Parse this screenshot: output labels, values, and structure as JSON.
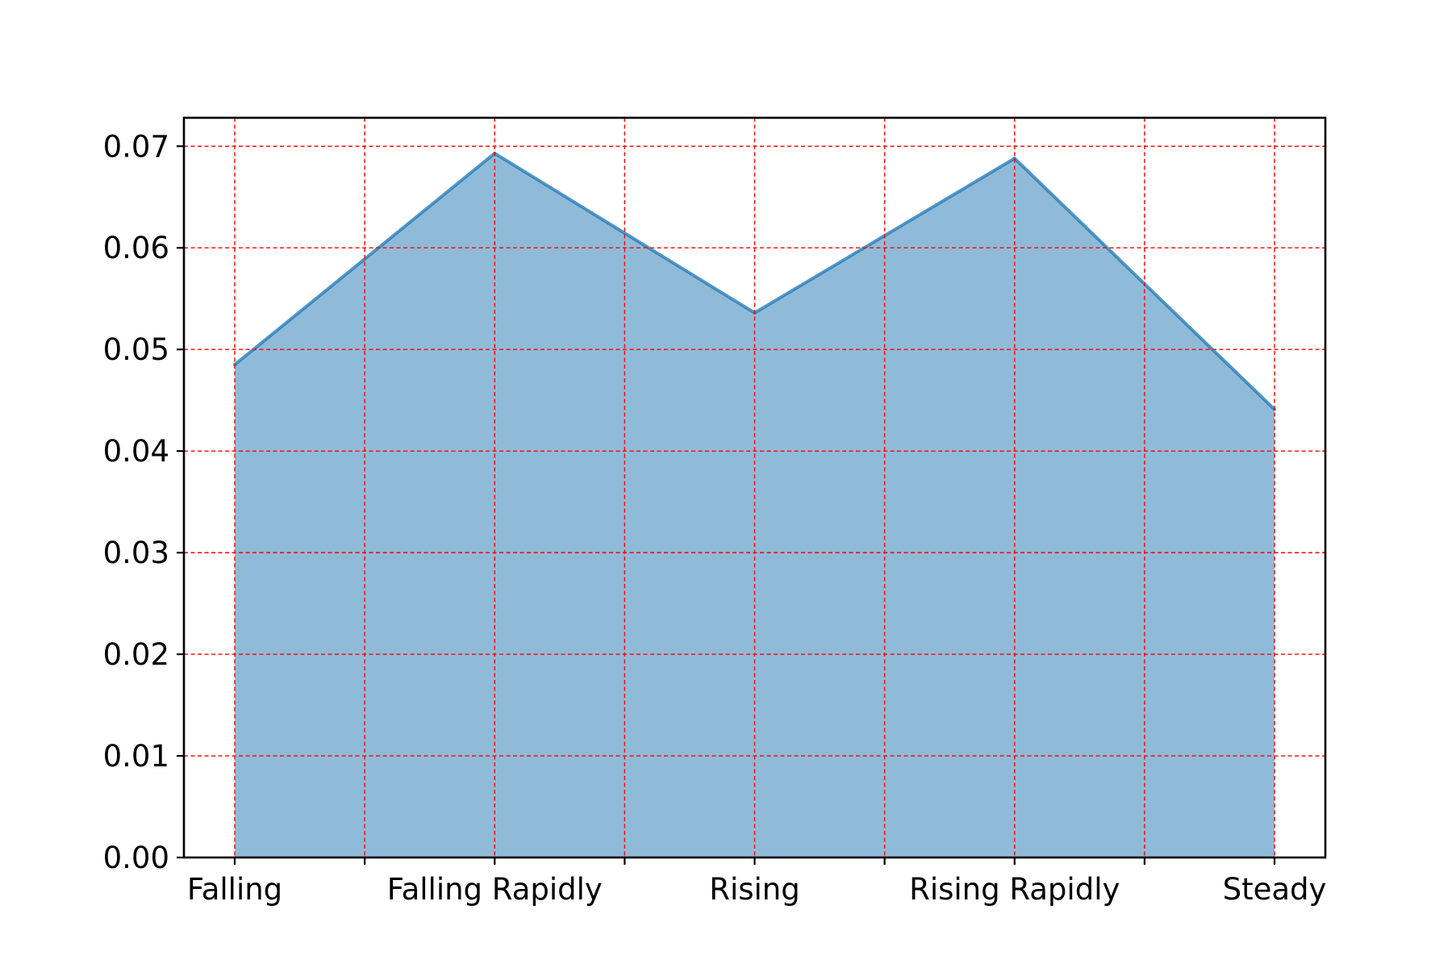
{
  "chart_data": {
    "type": "area",
    "title": "",
    "xlabel": "",
    "ylabel": "",
    "categories": [
      "Falling",
      "Falling Rapidly",
      "Rising",
      "Rising Rapidly",
      "Steady"
    ],
    "x_minor_ticks": 4,
    "series": [
      {
        "values": [
          0.0485,
          0.0693,
          0.0536,
          0.0688,
          0.0441
        ],
        "color": "#1f77b4",
        "fill_opacity": 0.5
      }
    ],
    "ylim": [
      0,
      0.0728
    ],
    "yticks": [
      0.0,
      0.01,
      0.02,
      0.03,
      0.04,
      0.05,
      0.06,
      0.07
    ],
    "ytick_labels": [
      "0.00",
      "0.01",
      "0.02",
      "0.03",
      "0.04",
      "0.05",
      "0.06",
      "0.07"
    ],
    "grid": true,
    "grid_color": "#ff0000",
    "grid_style": "dashed",
    "legend": "none"
  }
}
